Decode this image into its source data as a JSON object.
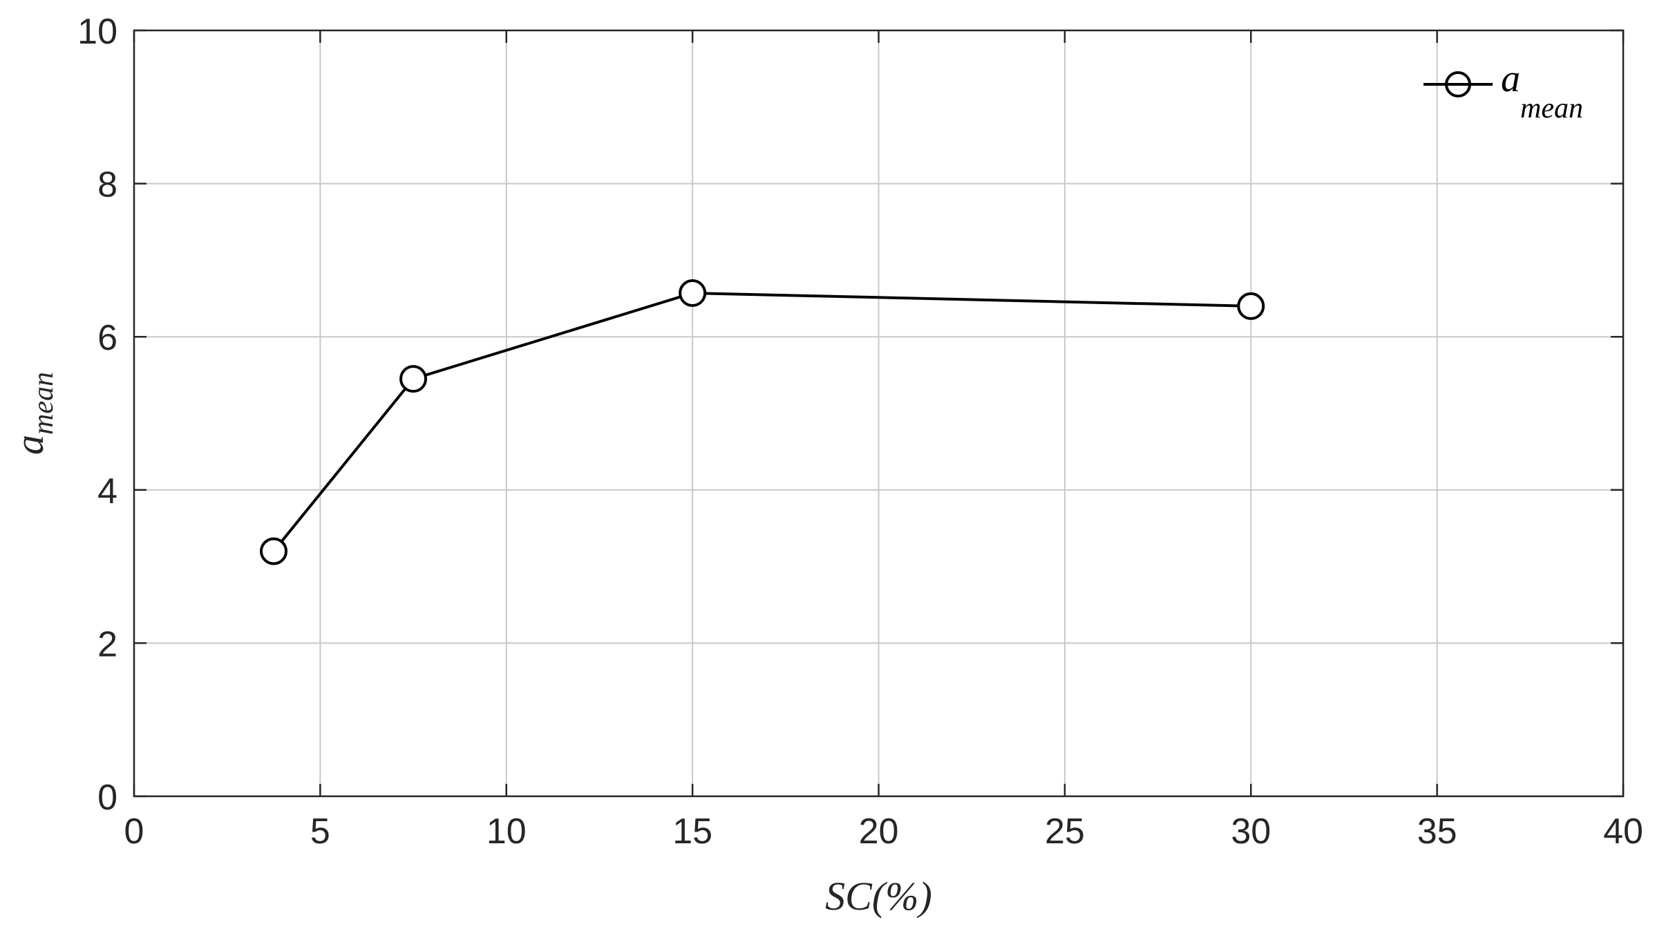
{
  "chart_data": {
    "type": "line",
    "x": [
      3.75,
      7.5,
      15,
      30
    ],
    "series": [
      {
        "name": "a_mean",
        "values": [
          3.2,
          5.45,
          6.57,
          6.4
        ],
        "marker": "open-circle",
        "color": "#000000"
      }
    ],
    "xlabel": "SC(%)",
    "ylabel_main": "a",
    "ylabel_sub": "mean",
    "legend_main": "a",
    "legend_sub": "mean",
    "legend_position": "top-right",
    "xlim": [
      0,
      40
    ],
    "ylim": [
      0,
      10
    ],
    "xticks": [
      0,
      5,
      10,
      15,
      20,
      25,
      30,
      35,
      40
    ],
    "yticks": [
      0,
      2,
      4,
      6,
      8,
      10
    ],
    "xtick_labels": [
      "0",
      "5",
      "10",
      "15",
      "20",
      "25",
      "30",
      "35",
      "40"
    ],
    "ytick_labels": [
      "0",
      "2",
      "4",
      "6",
      "8",
      "10"
    ],
    "grid": true,
    "colors": {
      "axis": "#262626",
      "grid": "#c8c8c8",
      "line": "#000000"
    }
  }
}
